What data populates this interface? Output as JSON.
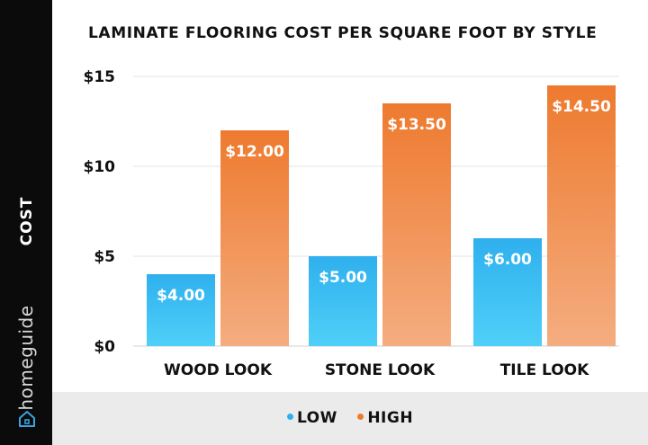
{
  "chart_data": {
    "type": "bar",
    "title": "LAMINATE FLOORING COST PER SQUARE FOOT BY STYLE",
    "xlabel": "",
    "ylabel": "COST",
    "categories": [
      "WOOD LOOK",
      "STONE LOOK",
      "TILE LOOK"
    ],
    "series": [
      {
        "name": "LOW",
        "values": [
          4.0,
          5.0,
          6.0
        ],
        "labels": [
          "$4.00",
          "$5.00",
          "$6.00"
        ],
        "color_top": "#2fb0ee",
        "color_bottom": "#4fd0f8"
      },
      {
        "name": "HIGH",
        "values": [
          12.0,
          13.5,
          14.5
        ],
        "labels": [
          "$12.00",
          "$13.50",
          "$14.50"
        ],
        "color_top": "#ee7a2f",
        "color_bottom": "#f4ad80"
      }
    ],
    "ylim": [
      0,
      15
    ],
    "yticks": [
      0,
      5,
      10,
      15
    ],
    "ytick_labels": [
      "$0",
      "$5",
      "$10",
      "$15"
    ],
    "grid": true,
    "legend_position": "bottom-center"
  },
  "brand": {
    "name": "homeguide",
    "icon": "house-icon"
  }
}
